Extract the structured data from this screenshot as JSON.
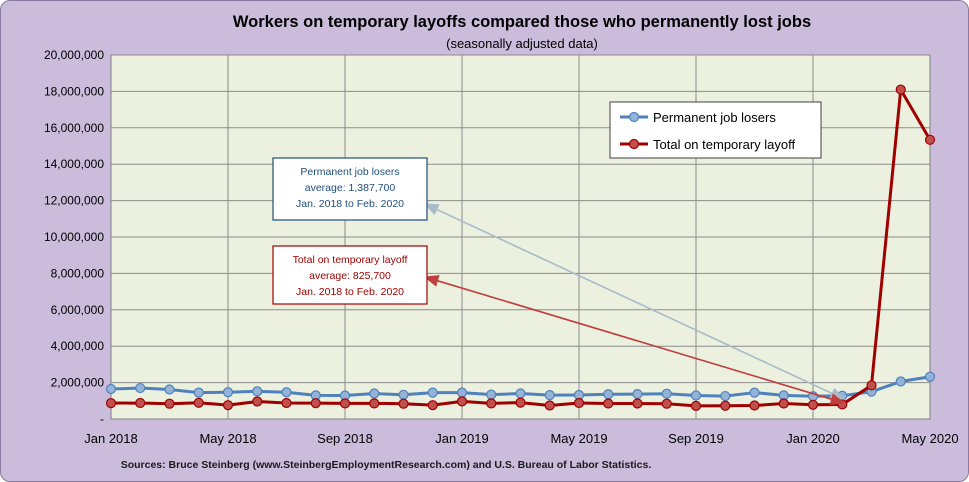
{
  "chart_data": {
    "type": "line",
    "title": "Workers on temporary layoffs compared those who permanently lost jobs",
    "subtitle": "(seasonally adjusted data)",
    "source": "Sources: Bruce Steinberg (www.SteinbergEmploymentResearch.com) and U.S. Bureau of Labor Statistics.",
    "x": [
      "Jan 2018",
      "Feb 2018",
      "Mar 2018",
      "Apr 2018",
      "May 2018",
      "Jun 2018",
      "Jul 2018",
      "Aug 2018",
      "Sep 2018",
      "Oct 2018",
      "Nov 2018",
      "Dec 2018",
      "Jan 2019",
      "Feb 2019",
      "Mar 2019",
      "Apr 2019",
      "May 2019",
      "Jun 2019",
      "Jul 2019",
      "Aug 2019",
      "Sep 2019",
      "Oct 2019",
      "Nov 2019",
      "Dec 2019",
      "Jan 2020",
      "Feb 2020",
      "Mar 2020",
      "Apr 2020",
      "May 2020"
    ],
    "x_tick_labels": [
      "Jan 2018",
      "May 2018",
      "Sep 2018",
      "Jan 2019",
      "May 2019",
      "Sep 2019",
      "Jan 2020",
      "May 2020"
    ],
    "y_tick_labels": [
      "-",
      "2,000,000",
      "4,000,000",
      "6,000,000",
      "8,000,000",
      "10,000,000",
      "12,000,000",
      "14,000,000",
      "16,000,000",
      "18,000,000",
      "20,000,000"
    ],
    "ylim": [
      0,
      20000000
    ],
    "grid": true,
    "legend_position": "top-right",
    "series": [
      {
        "name": "Permanent job losers",
        "color": "#4f81bd",
        "values": [
          1650000,
          1700000,
          1620000,
          1450000,
          1470000,
          1520000,
          1470000,
          1300000,
          1290000,
          1400000,
          1330000,
          1450000,
          1450000,
          1340000,
          1400000,
          1310000,
          1320000,
          1360000,
          1370000,
          1390000,
          1290000,
          1260000,
          1450000,
          1300000,
          1250000,
          1280000,
          1500000,
          2060000,
          2320000
        ]
      },
      {
        "name": "Total on temporary layoff",
        "color": "#a00000",
        "values": [
          870000,
          880000,
          840000,
          890000,
          760000,
          960000,
          880000,
          870000,
          860000,
          860000,
          840000,
          760000,
          970000,
          860000,
          900000,
          740000,
          880000,
          850000,
          850000,
          840000,
          720000,
          730000,
          740000,
          850000,
          780000,
          800000,
          1850000,
          18100000,
          15340000
        ]
      }
    ],
    "annotations": [
      {
        "lines": [
          "Permanent job losers",
          "average: 1,387,700",
          "Jan. 2018 to Feb. 2020"
        ],
        "color": "#1f4e79",
        "target_x": "Feb 2020",
        "target_y": 1387700
      },
      {
        "lines": [
          "Total on temporary layoff",
          "average: 825,700",
          "Jan. 2018 to Feb. 2020"
        ],
        "color": "#a00000",
        "target_x": "Feb 2020",
        "target_y": 825700
      }
    ]
  }
}
